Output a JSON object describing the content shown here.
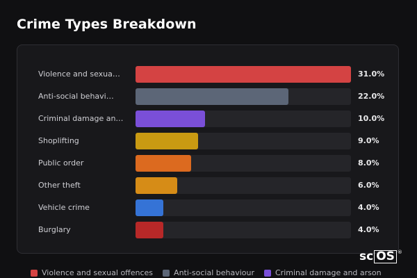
{
  "chart_data": {
    "type": "bar",
    "orientation": "horizontal",
    "title": "Crime Types Breakdown",
    "unit": "%",
    "xlim": [
      0,
      31
    ],
    "grid": false,
    "legend_position": "bottom",
    "categories": [
      {
        "label": "Violence and sexua…",
        "full": "Violence and sexual offences",
        "value": 31.0,
        "value_label": "31.0%",
        "color": "#d44343"
      },
      {
        "label": "Anti-social behavi…",
        "full": "Anti-social behaviour",
        "value": 22.0,
        "value_label": "22.0%",
        "color": "#5c6677"
      },
      {
        "label": "Criminal damage an…",
        "full": "Criminal damage and arson",
        "value": 10.0,
        "value_label": "10.0%",
        "color": "#7a4fd8"
      },
      {
        "label": "Shoplifting",
        "full": "Shoplifting",
        "value": 9.0,
        "value_label": "9.0%",
        "color": "#c99a12"
      },
      {
        "label": "Public order",
        "full": "Public order",
        "value": 8.0,
        "value_label": "8.0%",
        "color": "#dc6a1f"
      },
      {
        "label": "Other theft",
        "full": "Other theft",
        "value": 6.0,
        "value_label": "6.0%",
        "color": "#d68c17"
      },
      {
        "label": "Vehicle crime",
        "full": "Vehicle crime",
        "value": 4.0,
        "value_label": "4.0%",
        "color": "#3573d6"
      },
      {
        "label": "Burglary",
        "full": "Burglary",
        "value": 4.0,
        "value_label": "4.0%",
        "color": "#b72828"
      }
    ],
    "legend": [
      {
        "label": "Violence and sexual offences",
        "color": "#d44343"
      },
      {
        "label": "Anti-social behaviour",
        "color": "#5c6677"
      },
      {
        "label": "Criminal damage and arson",
        "color": "#7a4fd8"
      }
    ]
  },
  "logo": {
    "text_a": "sc",
    "text_b": "OS",
    "mark": "®"
  }
}
